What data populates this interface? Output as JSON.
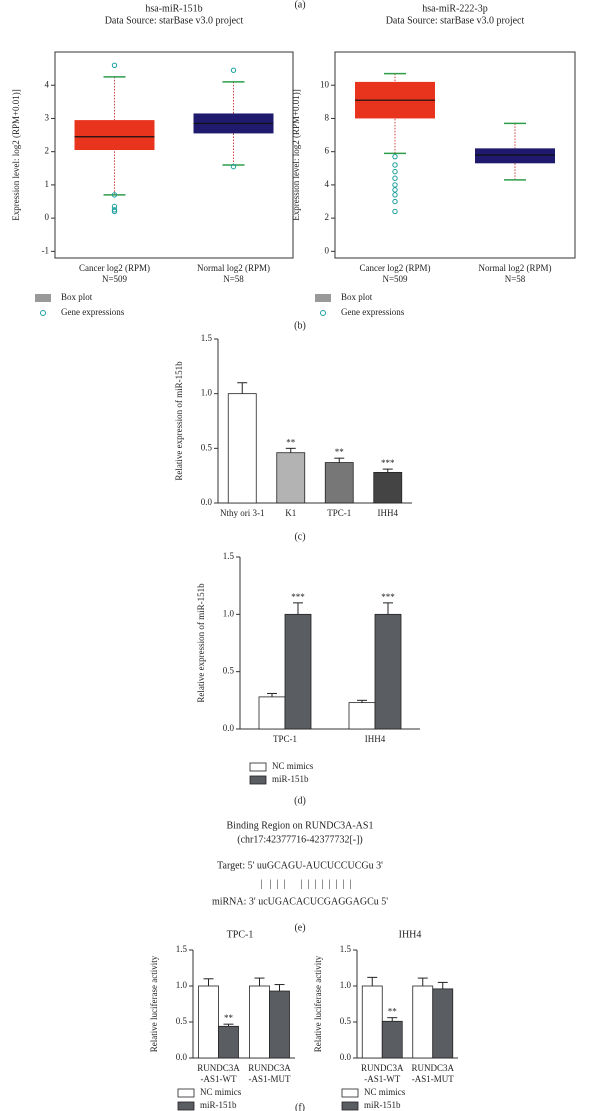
{
  "captions": {
    "a": "(a)",
    "b": "(b)",
    "c": "(c)",
    "d": "(d)",
    "e": "(e)",
    "f": "(f)"
  },
  "binding": {
    "title": "Binding Region on RUNDC3A-AS1",
    "region": "(chr17:42377716-42377732[-])",
    "target": "Target: 5' uuGCAGU-AUCUCCUCGu 3'",
    "pairs": "|   |  |  |      |  |  |  |  |  |  |  |",
    "mirna": "miRNA: 3' ucUGACACUCGAGGAGCu 5'"
  },
  "chart_data": [
    {
      "type": "box",
      "title": "hsa-miR-151b",
      "subtitle": "Data Source: starBase v3.0 project",
      "ylabel": "Expression level: log2 (RPM+0.01)]",
      "categories": [
        [
          "Cancer log2 (RPM)",
          "N=509"
        ],
        [
          "Normal log2 (RPM)",
          "N=58"
        ]
      ],
      "colors": [
        "#e8341c",
        "#1f1a6e"
      ],
      "whisker_color": "#2e9e4a",
      "outlier_color": "#1a9e9e",
      "boxes": [
        {
          "low": 0.7,
          "q1": 2.05,
          "median": 2.45,
          "q3": 2.95,
          "high": 4.25,
          "outliers": [
            4.6,
            0.7,
            0.35,
            0.25,
            0.2
          ]
        },
        {
          "low": 1.6,
          "q1": 2.55,
          "median": 2.85,
          "q3": 3.15,
          "high": 4.1,
          "outliers": [
            4.45,
            1.55
          ]
        }
      ],
      "legend": [
        {
          "name": "Box plot",
          "color": "#999999"
        },
        {
          "name": "Gene expressions",
          "color": "#1a9e9e"
        }
      ],
      "ylim": [
        -1.2,
        5
      ],
      "yticks": [
        -1,
        0,
        1,
        2,
        3,
        4
      ]
    },
    {
      "type": "box",
      "title": "hsa-miR-222-3p",
      "subtitle": "Data Source: starBase v3.0 project",
      "ylabel": "Expression level: log2 (RPM+0.01)]",
      "categories": [
        [
          "Cancer log2 (RPM)",
          "N=509"
        ],
        [
          "Normal log2 (RPM)",
          "N=58"
        ]
      ],
      "colors": [
        "#e8341c",
        "#1f1a6e"
      ],
      "whisker_color": "#2e9e4a",
      "outlier_color": "#1a9e9e",
      "boxes": [
        {
          "low": 5.9,
          "q1": 8.0,
          "median": 9.1,
          "q3": 10.2,
          "high": 10.7,
          "outliers": [
            5.7,
            5.2,
            4.8,
            4.4,
            4.0,
            3.7,
            3.4,
            3.0,
            2.4
          ]
        },
        {
          "low": 4.3,
          "q1": 5.3,
          "median": 5.8,
          "q3": 6.2,
          "high": 7.7,
          "outliers": []
        }
      ],
      "legend": [
        {
          "name": "Box plot",
          "color": "#999999"
        },
        {
          "name": "Gene expressions",
          "color": "#1a9e9e"
        }
      ],
      "ylim": [
        -0.4,
        12
      ],
      "yticks": [
        0,
        2,
        4,
        6,
        8,
        10
      ]
    },
    {
      "type": "bar",
      "ylabel": "Relative expression of miR-151b",
      "categories": [
        [
          "Nthy ori 3-1"
        ],
        [
          "K1"
        ],
        [
          "TPC-1"
        ],
        [
          "IHH4"
        ]
      ],
      "values": [
        1.0,
        0.46,
        0.37,
        0.28
      ],
      "errors": [
        0.1,
        0.04,
        0.04,
        0.03
      ],
      "colors": [
        "#ffffff",
        "#b3b3b3",
        "#777777",
        "#444444"
      ],
      "annotations": [
        null,
        "**",
        "**",
        "***"
      ],
      "ylim": [
        0,
        1.5
      ],
      "yticks": [
        {
          "value": 0,
          "label": "0.0"
        },
        {
          "value": 0.5,
          "label": "0.5"
        },
        {
          "value": 1,
          "label": "1.0"
        },
        {
          "value": 1.5,
          "label": "1.5"
        }
      ]
    },
    {
      "type": "bar",
      "ylabel": "Relative expression of miR-151b",
      "categories": [
        [
          "TPC-1"
        ],
        [
          "IHH4"
        ]
      ],
      "series": [
        {
          "name": "NC mimics",
          "color": "#ffffff",
          "values": [
            0.28,
            0.23
          ],
          "errors": [
            0.03,
            0.02
          ],
          "annotations": [
            null,
            null
          ]
        },
        {
          "name": "miR-151b",
          "color": "#5a5d61",
          "values": [
            1.0,
            1.0
          ],
          "errors": [
            0.1,
            0.1
          ],
          "annotations": [
            "***",
            "***"
          ]
        }
      ],
      "ylim": [
        0,
        1.5
      ],
      "yticks": [
        {
          "value": 0,
          "label": "0.0"
        },
        {
          "value": 0.5,
          "label": "0.5"
        },
        {
          "value": 1,
          "label": "1.0"
        },
        {
          "value": 1.5,
          "label": "1.5"
        }
      ]
    },
    {
      "type": "bar",
      "title": "TPC-1",
      "ylabel": "Relative luciferase activity",
      "categories": [
        [
          "RUNDC3A",
          "-AS1-WT"
        ],
        [
          "RUNDC3A",
          "-AS1-MUT"
        ]
      ],
      "series": [
        {
          "name": "NC mimics",
          "color": "#ffffff",
          "values": [
            1.0,
            1.0
          ],
          "errors": [
            0.1,
            0.11
          ],
          "annotations": [
            null,
            null
          ]
        },
        {
          "name": "miR-151b",
          "color": "#5a5d61",
          "values": [
            0.44,
            0.93
          ],
          "errors": [
            0.03,
            0.09
          ],
          "annotations": [
            "**",
            null
          ]
        }
      ],
      "ylim": [
        0,
        1.5
      ],
      "yticks": [
        {
          "value": 0,
          "label": "0.0"
        },
        {
          "value": 0.5,
          "label": "0.5"
        },
        {
          "value": 1,
          "label": "1.0"
        },
        {
          "value": 1.5,
          "label": "1.5"
        }
      ]
    },
    {
      "type": "bar",
      "title": "IHH4",
      "ylabel": "Relative luciferase activity",
      "categories": [
        [
          "RUNDC3A",
          "-AS1-WT"
        ],
        [
          "RUNDC3A",
          "-AS1-MUT"
        ]
      ],
      "series": [
        {
          "name": "NC mimics",
          "color": "#ffffff",
          "values": [
            1.0,
            1.0
          ],
          "errors": [
            0.12,
            0.11
          ],
          "annotations": [
            null,
            null
          ]
        },
        {
          "name": "miR-151b",
          "color": "#5a5d61",
          "values": [
            0.51,
            0.96
          ],
          "errors": [
            0.05,
            0.09
          ],
          "annotations": [
            "**",
            null
          ]
        }
      ],
      "ylim": [
        0,
        1.5
      ],
      "yticks": [
        {
          "value": 0,
          "label": "0.0"
        },
        {
          "value": 0.5,
          "label": "0.5"
        },
        {
          "value": 1,
          "label": "1.0"
        },
        {
          "value": 1.5,
          "label": "1.5"
        }
      ]
    }
  ]
}
